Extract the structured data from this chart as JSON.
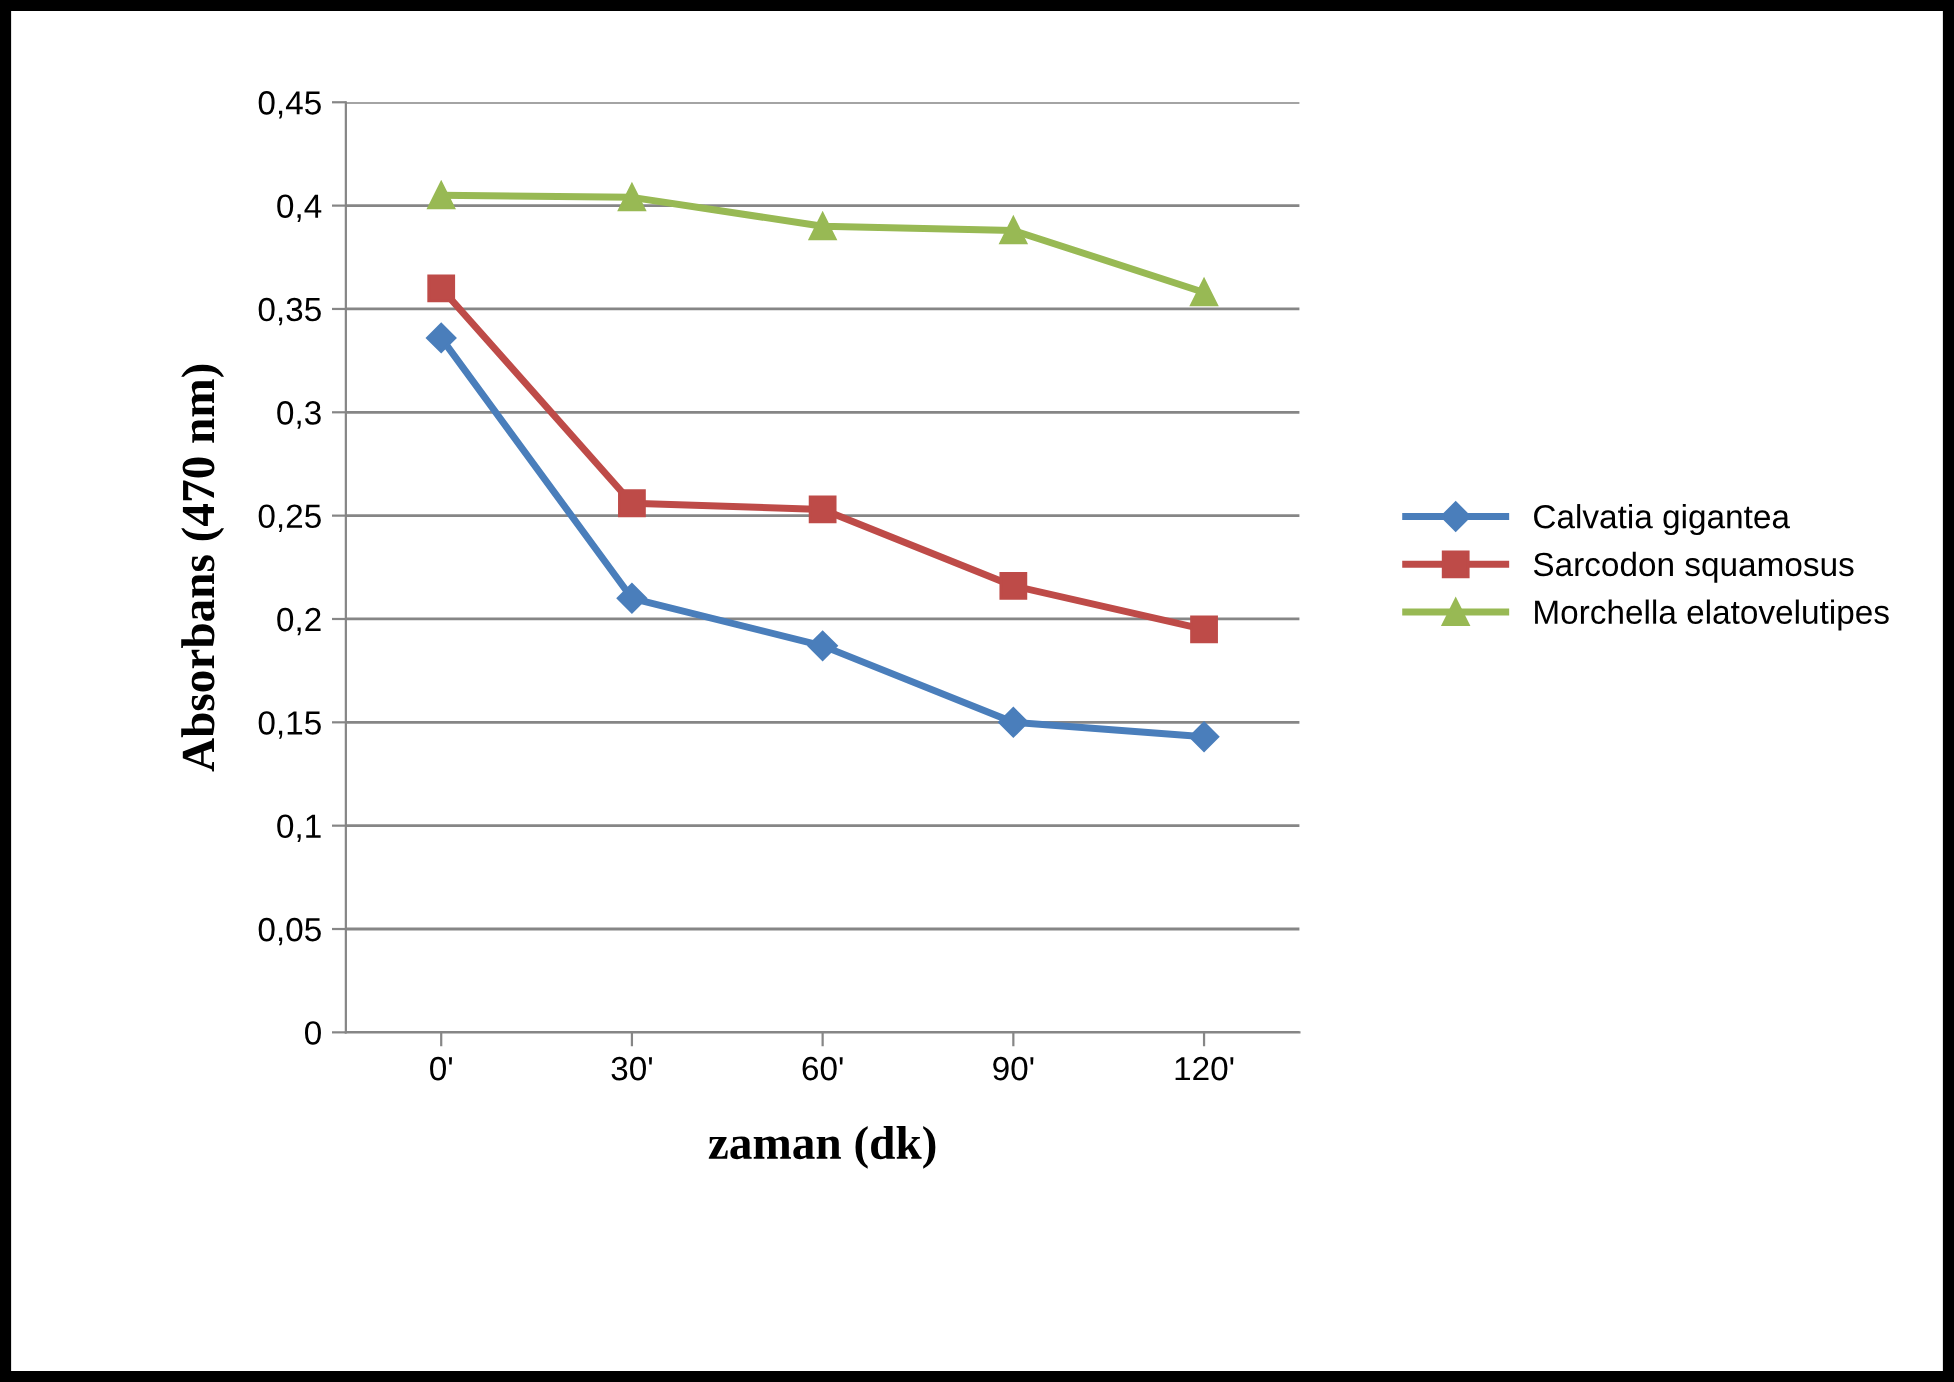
{
  "chart_data": {
    "type": "line",
    "xlabel": "zaman (dk)",
    "ylabel": "Absorbans (470 nm)",
    "categories": [
      "0'",
      "30'",
      "60'",
      "90'",
      "120'"
    ],
    "series": [
      {
        "name": "Calvatia gigantea",
        "color": "#4a7ebb",
        "marker": "diamond",
        "values": [
          0.336,
          0.21,
          0.187,
          0.15,
          0.143
        ]
      },
      {
        "name": "Sarcodon squamosus",
        "color": "#be4b48",
        "marker": "square",
        "values": [
          0.36,
          0.256,
          0.253,
          0.216,
          0.195
        ]
      },
      {
        "name": "Morchella elatovelutipes",
        "color": "#98b954",
        "marker": "triangle",
        "values": [
          0.405,
          0.404,
          0.39,
          0.388,
          0.358
        ]
      }
    ],
    "ylim": [
      0,
      0.45
    ],
    "yticks": [
      {
        "value": 0,
        "label": "0"
      },
      {
        "value": 0.05,
        "label": "0,05"
      },
      {
        "value": 0.1,
        "label": "0,1"
      },
      {
        "value": 0.15,
        "label": "0,15"
      },
      {
        "value": 0.2,
        "label": "0,2"
      },
      {
        "value": 0.25,
        "label": "0,25"
      },
      {
        "value": 0.3,
        "label": "0,3"
      },
      {
        "value": 0.35,
        "label": "0,35"
      },
      {
        "value": 0.4,
        "label": "0,4"
      },
      {
        "value": 0.45,
        "label": "0,45"
      }
    ],
    "grid": "y",
    "legend": "right",
    "line_style": "solid"
  }
}
